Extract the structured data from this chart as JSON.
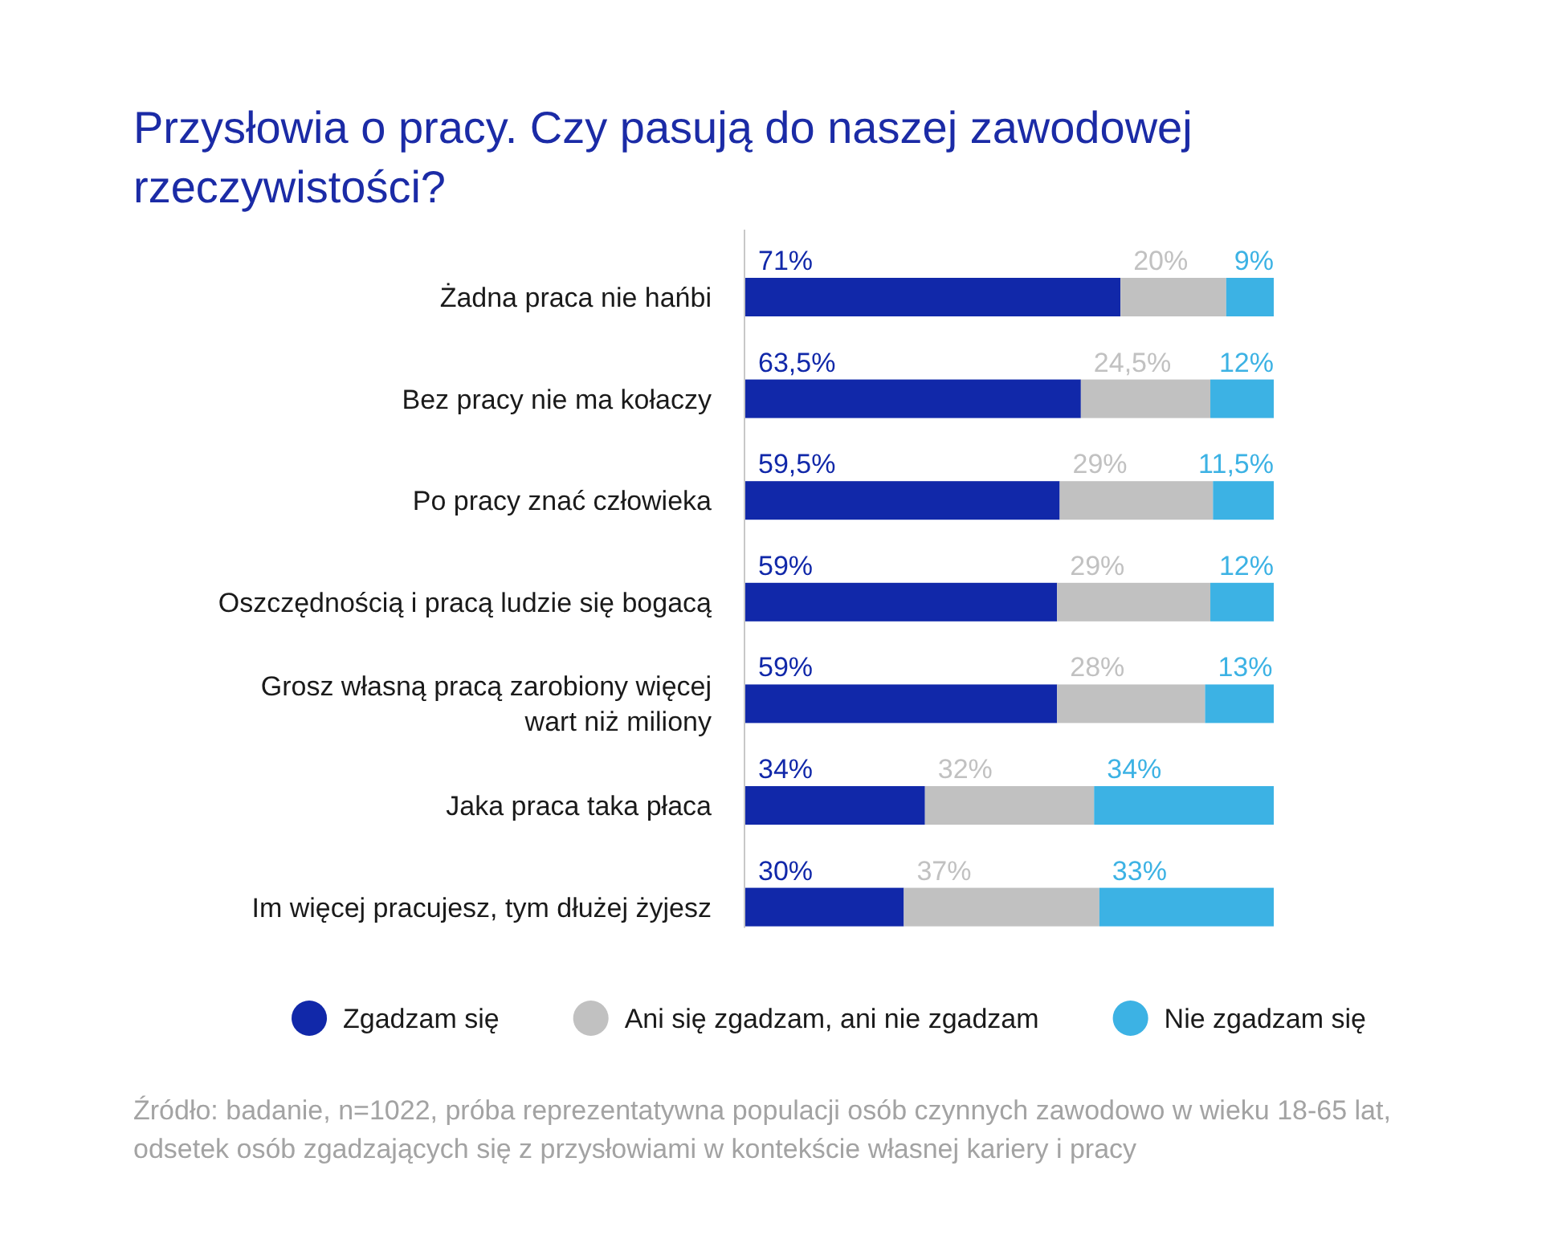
{
  "chart_data": {
    "type": "bar",
    "orientation": "horizontal",
    "stacked": true,
    "title": "Przysłowia o pracy. Czy pasują do naszej zawodowej rzeczywistości?",
    "categories": [
      "Żadna praca nie hańbi",
      "Bez pracy nie ma kołaczy",
      "Po pracy znać człowieka",
      "Oszczędnością i pracą ludzie się bogacą",
      "Grosz własną pracą zarobiony więcej wart niż miliony",
      "Jaka praca taka płaca",
      "Im więcej pracujesz, tym dłużej żyjesz"
    ],
    "series": [
      {
        "name": "Zgadzam się",
        "color": "#1128a9",
        "values": [
          71,
          63.5,
          59.5,
          59,
          59,
          34,
          30
        ],
        "value_labels": [
          "71%",
          "63,5%",
          "59,5%",
          "59%",
          "59%",
          "34%",
          "30%"
        ]
      },
      {
        "name": "Ani się zgadzam, ani nie zgadzam",
        "color": "#c1c1c1",
        "values": [
          20,
          24.5,
          29,
          29,
          28,
          32,
          37
        ],
        "value_labels": [
          "20%",
          "24,5%",
          "29%",
          "29%",
          "28%",
          "32%",
          "37%"
        ]
      },
      {
        "name": "Nie zgadzam się",
        "color": "#3cb2e4",
        "values": [
          9,
          12,
          11.5,
          12,
          13,
          34,
          33
        ],
        "value_labels": [
          "9%",
          "12%",
          "11,5%",
          "12%",
          "13%",
          "34%",
          "33%"
        ]
      }
    ],
    "legend": "bottom",
    "tick_labels": "y",
    "annotations": [
      "Źródło: badanie, n=1022, próba reprezentatywna populacji osób czynnych zawodowo w wieku 18-65 lat, odsetek osób zgadzających się z przysłowiami w kontekście własnej kariery i pracy"
    ]
  }
}
